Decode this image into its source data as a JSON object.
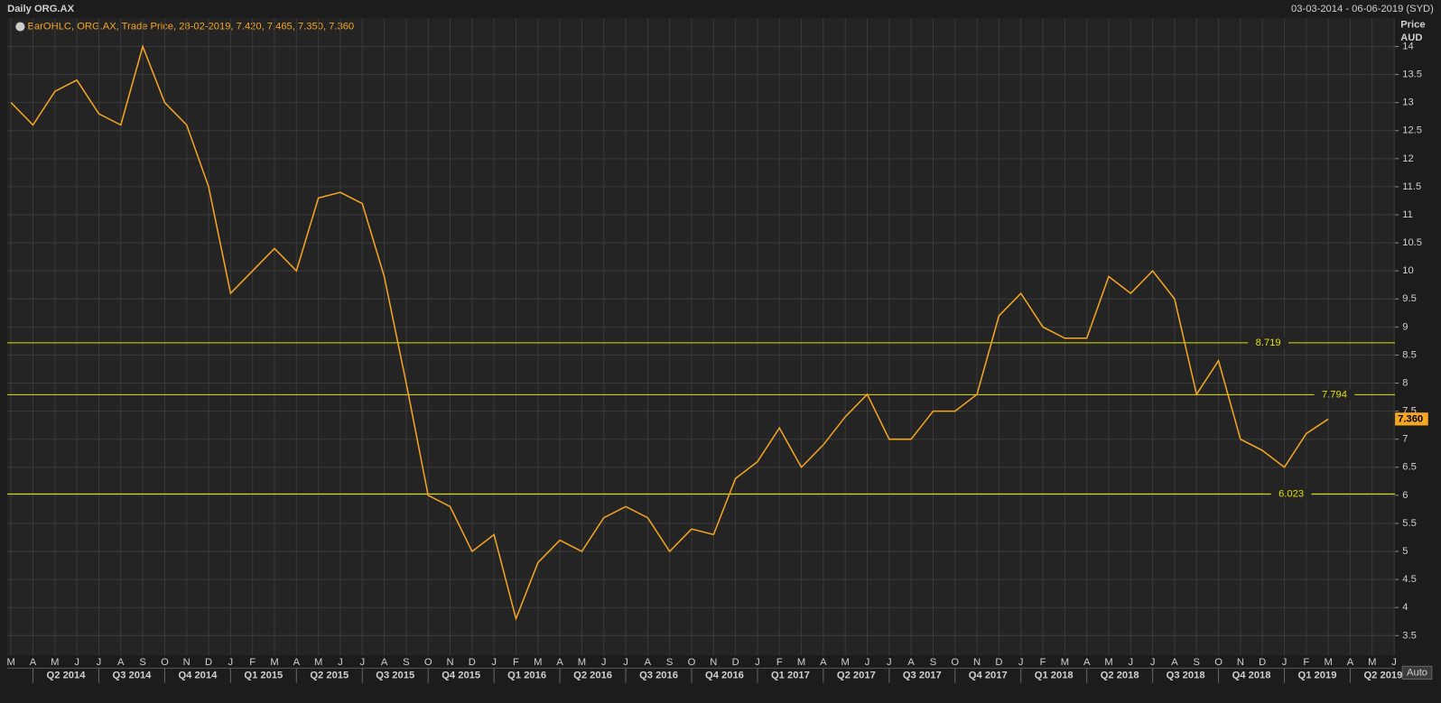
{
  "header": {
    "title": "Daily ORG.AX",
    "range": "03-03-2014 - 06-06-2019 (SYD)",
    "legend": "BarOHLC, ORG.AX, Trade Price, 28-02-2019, 7.420, 7.465, 7.350, 7.360",
    "axis_label_1": "Price",
    "axis_label_2": "AUD",
    "auto_button": "Auto"
  },
  "chart_data": {
    "type": "line",
    "categories": [
      "M",
      "A",
      "M",
      "J",
      "J",
      "A",
      "S",
      "O",
      "N",
      "D",
      "J",
      "F",
      "M",
      "A",
      "M",
      "J",
      "J",
      "A",
      "S",
      "O",
      "N",
      "D",
      "J",
      "F",
      "M",
      "A",
      "M",
      "J",
      "J",
      "A",
      "S",
      "O",
      "N",
      "D",
      "J",
      "F",
      "M",
      "A",
      "M",
      "J",
      "J",
      "A",
      "S",
      "O",
      "N",
      "D",
      "J",
      "F",
      "M",
      "A",
      "M",
      "J",
      "J",
      "A",
      "S",
      "O",
      "N",
      "D",
      "J",
      "F",
      "M",
      "A",
      "M",
      "J"
    ],
    "quarters": [
      "Q2 2014",
      "Q3 2014",
      "Q4 2014",
      "Q1 2015",
      "Q2 2015",
      "Q3 2015",
      "Q4 2015",
      "Q1 2016",
      "Q2 2016",
      "Q3 2016",
      "Q4 2016",
      "Q1 2017",
      "Q2 2017",
      "Q3 2017",
      "Q4 2017",
      "Q1 2018",
      "Q2 2018",
      "Q3 2018",
      "Q4 2018",
      "Q1 2019",
      "Q2 2019"
    ],
    "series": [
      {
        "name": "ORG.AX",
        "color": "#f5a623",
        "values": [
          13.0,
          12.6,
          13.2,
          13.4,
          12.8,
          12.6,
          14.0,
          13.0,
          12.6,
          11.5,
          9.6,
          10.0,
          10.4,
          10.0,
          11.3,
          11.4,
          11.2,
          9.9,
          8.0,
          6.0,
          5.8,
          5.0,
          5.3,
          3.8,
          4.8,
          5.2,
          5.0,
          5.6,
          5.8,
          5.6,
          5.0,
          5.4,
          5.3,
          6.3,
          6.6,
          7.2,
          6.5,
          6.9,
          7.4,
          7.8,
          7.0,
          7.0,
          7.5,
          7.5,
          7.8,
          9.2,
          9.6,
          9.0,
          8.8,
          8.8,
          9.9,
          9.6,
          10.0,
          9.5,
          7.8,
          8.4,
          7.0,
          6.8,
          6.5,
          7.1,
          7.36,
          null,
          null,
          null
        ]
      }
    ],
    "ylim": [
      3.15,
      14.5
    ],
    "yticks": [
      3.5,
      4,
      4.5,
      5,
      5.5,
      6,
      6.5,
      7,
      7.5,
      8,
      8.5,
      9,
      9.5,
      10,
      10.5,
      11,
      11.5,
      12,
      12.5,
      13,
      13.5,
      14
    ],
    "levels": [
      8.719,
      7.794,
      6.023
    ],
    "last_price": {
      "value": 7.36,
      "label": "7.360"
    },
    "grid": true
  }
}
